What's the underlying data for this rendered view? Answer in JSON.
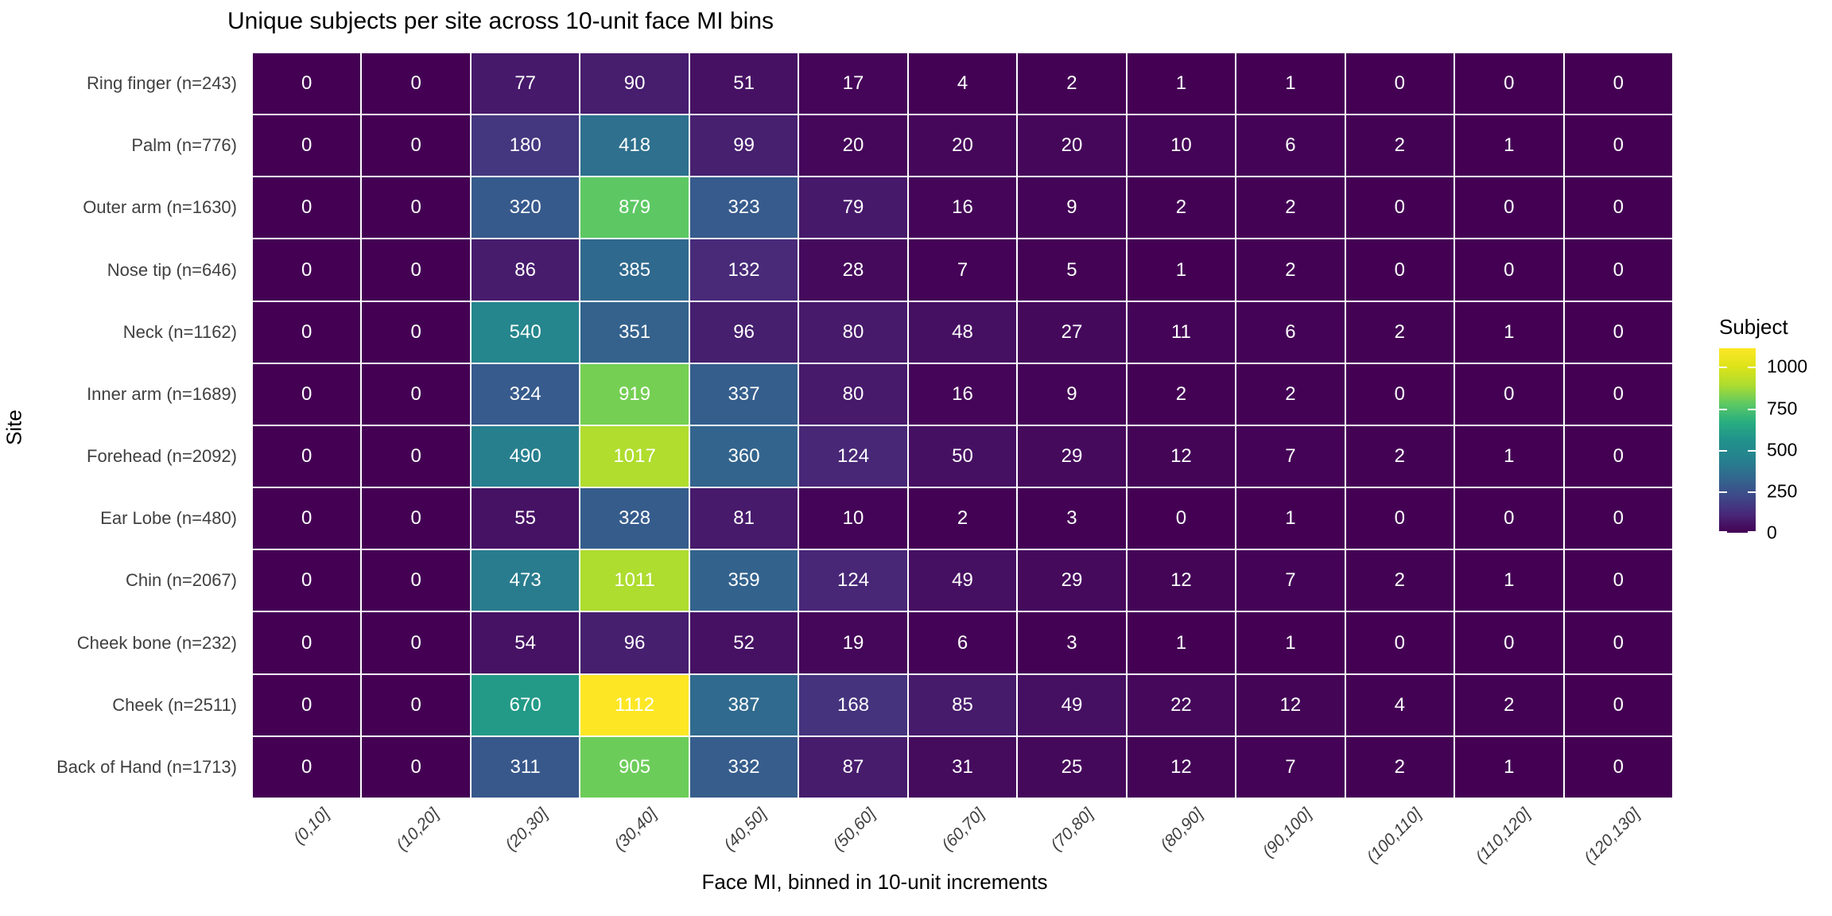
{
  "chart_data": {
    "type": "heatmap",
    "title": "Unique subjects per site across 10-unit face MI bins",
    "xlabel": "Face MI, binned in 10-unit increments",
    "ylabel": "Site",
    "rows": [
      "Ring finger (n=243)",
      "Palm (n=776)",
      "Outer arm (n=1630)",
      "Nose tip (n=646)",
      "Neck (n=1162)",
      "Inner arm (n=1689)",
      "Forehead (n=2092)",
      "Ear Lobe (n=480)",
      "Chin (n=2067)",
      "Cheek bone (n=232)",
      "Cheek (n=2511)",
      "Back of Hand (n=1713)"
    ],
    "columns": [
      "(0,10]",
      "(10,20]",
      "(20,30]",
      "(30,40]",
      "(40,50]",
      "(50,60]",
      "(60,70]",
      "(70,80]",
      "(80,90]",
      "(90,100]",
      "(100,110]",
      "(110,120]",
      "(120,130]"
    ],
    "values": [
      [
        0,
        0,
        77,
        90,
        51,
        17,
        4,
        2,
        1,
        1,
        0,
        0,
        0
      ],
      [
        0,
        0,
        180,
        418,
        99,
        20,
        20,
        20,
        10,
        6,
        2,
        1,
        0
      ],
      [
        0,
        0,
        320,
        879,
        323,
        79,
        16,
        9,
        2,
        2,
        0,
        0,
        0
      ],
      [
        0,
        0,
        86,
        385,
        132,
        28,
        7,
        5,
        1,
        2,
        0,
        0,
        0
      ],
      [
        0,
        0,
        540,
        351,
        96,
        80,
        48,
        27,
        11,
        6,
        2,
        1,
        0
      ],
      [
        0,
        0,
        324,
        919,
        337,
        80,
        16,
        9,
        2,
        2,
        0,
        0,
        0
      ],
      [
        0,
        0,
        490,
        1017,
        360,
        124,
        50,
        29,
        12,
        7,
        2,
        1,
        0
      ],
      [
        0,
        0,
        55,
        328,
        81,
        10,
        2,
        3,
        0,
        1,
        0,
        0,
        0
      ],
      [
        0,
        0,
        473,
        1011,
        359,
        124,
        49,
        29,
        12,
        7,
        2,
        1,
        0
      ],
      [
        0,
        0,
        54,
        96,
        52,
        19,
        6,
        3,
        1,
        1,
        0,
        0,
        0
      ],
      [
        0,
        0,
        670,
        1112,
        387,
        168,
        85,
        49,
        22,
        12,
        4,
        2,
        0
      ],
      [
        0,
        0,
        311,
        905,
        332,
        87,
        31,
        25,
        12,
        7,
        2,
        1,
        0
      ]
    ],
    "legend": {
      "title": "Subject",
      "ticks": [
        0,
        250,
        500,
        750,
        1000
      ],
      "max": 1112
    },
    "layout": {
      "grid": "off",
      "legend_position": "right",
      "x_tick_angle": 45
    },
    "colors": {
      "viridis_stops": [
        [
          0.0,
          "#440154"
        ],
        [
          0.1,
          "#482878"
        ],
        [
          0.2,
          "#3e4a89"
        ],
        [
          0.3,
          "#31688e"
        ],
        [
          0.4,
          "#26828e"
        ],
        [
          0.5,
          "#21918c"
        ],
        [
          0.6,
          "#28ae80"
        ],
        [
          0.7,
          "#5ec962"
        ],
        [
          0.8,
          "#addc30"
        ],
        [
          0.9,
          "#dde319"
        ],
        [
          1.0,
          "#fde725"
        ]
      ],
      "fill_color_divisor": 1260,
      "fill_saturate_at": 1100,
      "cell_text": "#ffffff",
      "axis_text": "#404040",
      "title_text": "#000000",
      "tile_border": "#ffffff"
    }
  }
}
